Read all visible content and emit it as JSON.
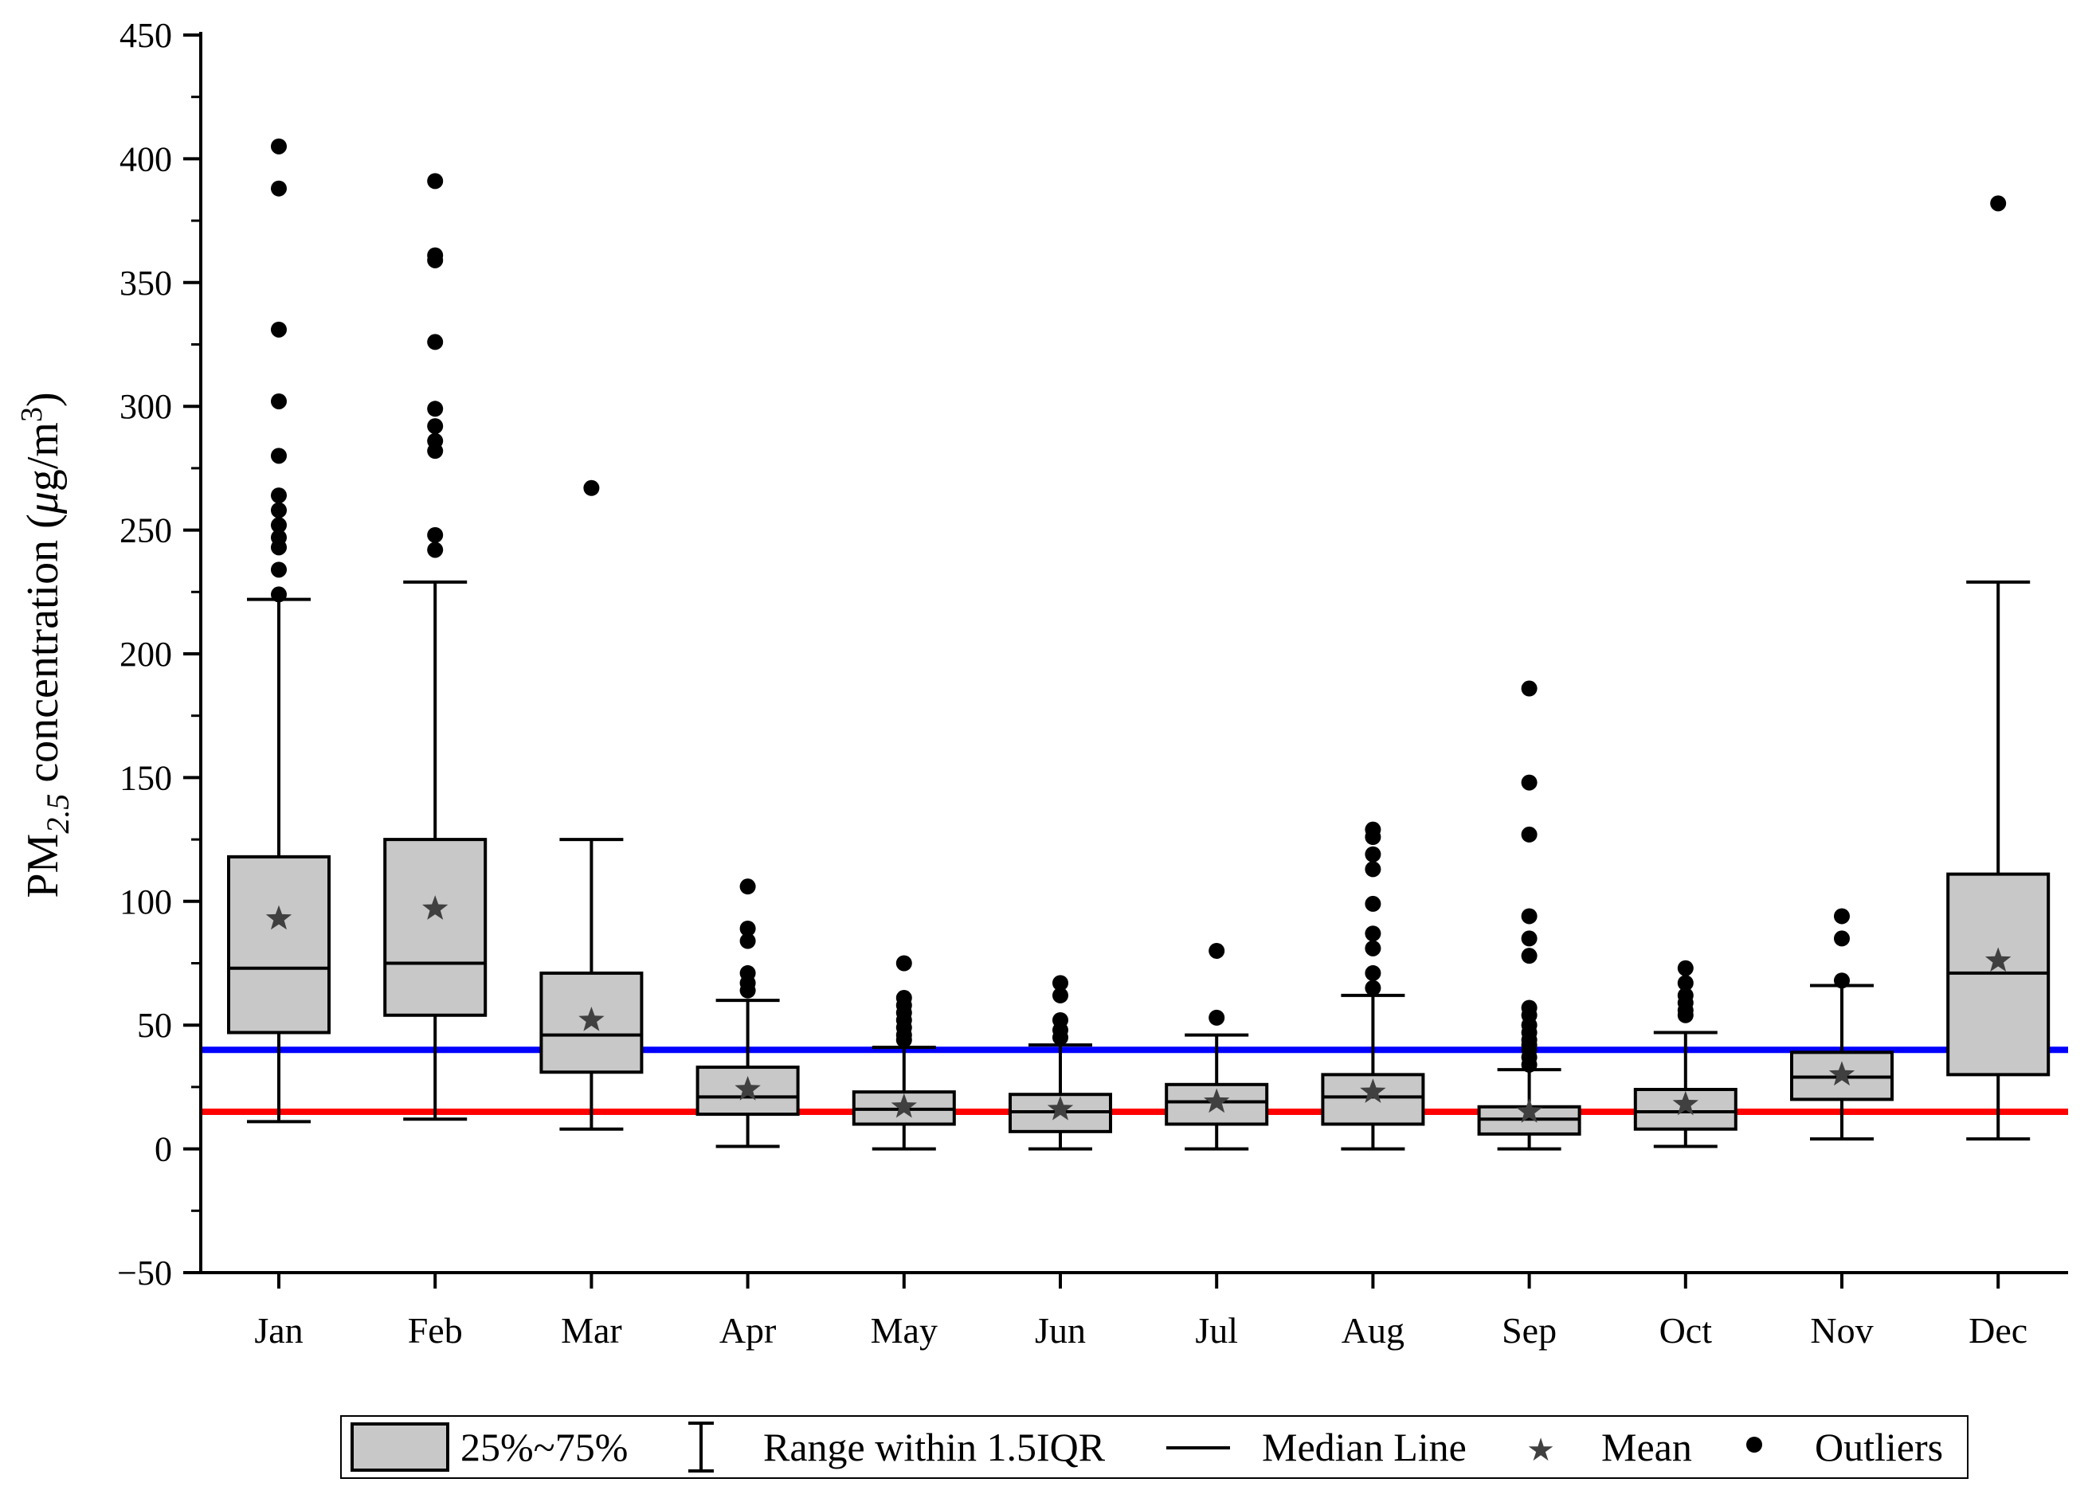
{
  "chart_data": {
    "type": "box",
    "ylabel": {
      "prefix": "PM",
      "subscript": "2.5",
      "middle": " concentration (",
      "unit_mu": "μ",
      "unit_rest": "g/m",
      "superscript": "3",
      "suffix": ")"
    },
    "ylim": [
      -50,
      450
    ],
    "yticks": [
      "−50",
      "0",
      "50",
      "100",
      "150",
      "200",
      "250",
      "300",
      "350",
      "400",
      "450"
    ],
    "ytick_values": [
      -50,
      0,
      50,
      100,
      150,
      200,
      250,
      300,
      350,
      400,
      450
    ],
    "categories": [
      "Jan",
      "Feb",
      "Mar",
      "Apr",
      "May",
      "Jun",
      "Jul",
      "Aug",
      "Sep",
      "Oct",
      "Nov",
      "Dec"
    ],
    "boxes": [
      {
        "month": "Jan",
        "whisker_low": 11,
        "q1": 47,
        "median": 73,
        "q3": 118,
        "whisker_high": 222,
        "mean": 93,
        "outliers": [
          405,
          388,
          331,
          302,
          280,
          264,
          258,
          252,
          247,
          243,
          234,
          224
        ]
      },
      {
        "month": "Feb",
        "whisker_low": 12,
        "q1": 54,
        "median": 75,
        "q3": 125,
        "whisker_high": 229,
        "mean": 97,
        "outliers": [
          391,
          361,
          359,
          326,
          299,
          292,
          286,
          282,
          248,
          242
        ]
      },
      {
        "month": "Mar",
        "whisker_low": 8,
        "q1": 31,
        "median": 46,
        "q3": 71,
        "whisker_high": 125,
        "mean": 52,
        "outliers": [
          267
        ]
      },
      {
        "month": "Apr",
        "whisker_low": 1,
        "q1": 14,
        "median": 21,
        "q3": 33,
        "whisker_high": 60,
        "mean": 24,
        "outliers": [
          106,
          89,
          84,
          71,
          67,
          64
        ]
      },
      {
        "month": "May",
        "whisker_low": 0,
        "q1": 10,
        "median": 16,
        "q3": 23,
        "whisker_high": 41,
        "mean": 17,
        "outliers": [
          75,
          61,
          58,
          55,
          52,
          49,
          46,
          44
        ]
      },
      {
        "month": "Jun",
        "whisker_low": 0,
        "q1": 7,
        "median": 15,
        "q3": 22,
        "whisker_high": 42,
        "mean": 16,
        "outliers": [
          67,
          62,
          52,
          48,
          45
        ]
      },
      {
        "month": "Jul",
        "whisker_low": 0,
        "q1": 10,
        "median": 19,
        "q3": 26,
        "whisker_high": 46,
        "mean": 19,
        "outliers": [
          80,
          53
        ]
      },
      {
        "month": "Aug",
        "whisker_low": 0,
        "q1": 10,
        "median": 21,
        "q3": 30,
        "whisker_high": 62,
        "mean": 23,
        "outliers": [
          129,
          126,
          119,
          113,
          99,
          87,
          81,
          71,
          65
        ]
      },
      {
        "month": "Sep",
        "whisker_low": 0,
        "q1": 6,
        "median": 12,
        "q3": 17,
        "whisker_high": 32,
        "mean": 15,
        "outliers": [
          186,
          148,
          127,
          94,
          85,
          78,
          57,
          54,
          50,
          47,
          44,
          42,
          40,
          37,
          34
        ]
      },
      {
        "month": "Oct",
        "whisker_low": 1,
        "q1": 8,
        "median": 15,
        "q3": 24,
        "whisker_high": 47,
        "mean": 18,
        "outliers": [
          73,
          67,
          62,
          59,
          56,
          54
        ]
      },
      {
        "month": "Nov",
        "whisker_low": 4,
        "q1": 20,
        "median": 29,
        "q3": 39,
        "whisker_high": 66,
        "mean": 30,
        "outliers": [
          94,
          85,
          68
        ]
      },
      {
        "month": "Dec",
        "whisker_low": 4,
        "q1": 30,
        "median": 71,
        "q3": 111,
        "whisker_high": 229,
        "mean": 76,
        "outliers": [
          382
        ]
      }
    ],
    "reference_lines": [
      {
        "value": 40,
        "color": "#0000ff"
      },
      {
        "value": 15,
        "color": "#ff0000"
      }
    ],
    "legend": {
      "box_label": "25%~75%",
      "range_label": "Range within 1.5IQR",
      "median_label": "Median Line",
      "mean_label": "Mean",
      "outlier_label": "Outliers",
      "mean_symbol": "★",
      "outlier_symbol": "●"
    },
    "colors": {
      "box_fill": "#c8c8c8",
      "mean_star": "#404040",
      "axis": "#000000"
    }
  }
}
